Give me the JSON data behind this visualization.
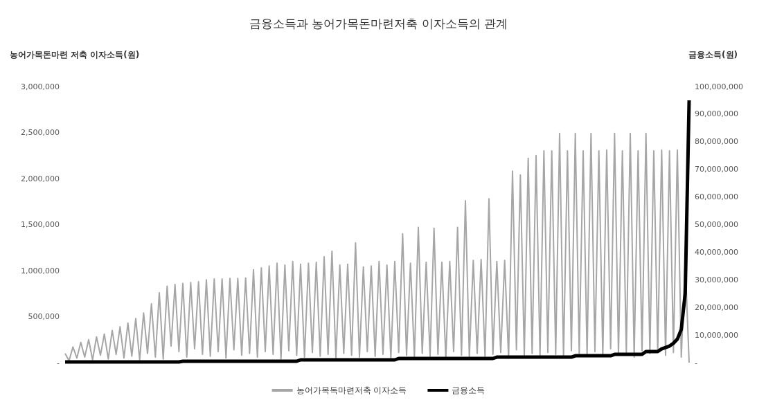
{
  "chart_data": {
    "type": "line",
    "title": "금융소득과 농어가목돈마련저축 이자소득의 관계",
    "ylabel": "농어가목돈마련 저축 이자소득(원)",
    "y2label": "금융소득(원)",
    "categories": [
      null,
      null,
      null,
      null,
      null,
      null,
      null,
      null,
      null,
      null,
      null,
      null,
      null,
      null,
      null,
      null,
      null,
      null,
      null,
      null,
      null,
      null,
      null,
      null,
      null,
      null,
      null,
      null,
      null,
      null,
      null,
      null,
      null,
      null,
      null,
      null,
      null,
      null,
      null,
      null,
      null,
      null,
      null,
      null,
      null,
      null,
      null,
      null,
      null,
      null,
      null,
      null,
      null,
      null,
      null,
      null,
      null,
      null,
      null,
      null,
      null,
      null,
      null,
      null,
      null,
      null,
      null,
      null,
      null,
      null,
      null,
      null,
      null,
      null,
      null,
      null,
      null,
      null,
      null,
      null,
      null,
      null,
      null,
      null,
      null,
      null,
      null,
      null,
      null,
      null,
      null,
      null,
      null,
      null,
      null,
      null,
      null,
      null,
      null,
      null,
      null,
      null,
      null,
      null,
      null,
      null,
      null,
      null,
      null,
      null,
      null,
      null,
      null,
      null,
      null,
      null,
      null,
      null,
      null,
      null,
      null,
      null,
      null,
      null,
      null,
      null,
      null,
      null,
      null,
      null,
      null,
      null,
      null,
      null,
      null,
      null,
      null,
      null,
      null,
      null,
      null,
      null,
      null,
      null,
      null,
      null,
      null,
      null,
      null,
      null,
      null,
      null,
      null,
      null,
      null,
      null,
      null,
      null,
      null,
      null
    ],
    "series": [
      {
        "name": "농어가목독마련저축 이자소득",
        "color": "#a6a6a6",
        "values": [
          100000,
          20000,
          170000,
          50000,
          220000,
          60000,
          250000,
          30000,
          280000,
          80000,
          310000,
          40000,
          350000,
          90000,
          390000,
          50000,
          430000,
          70000,
          480000,
          30000,
          540000,
          100000,
          640000,
          60000,
          760000,
          40000,
          830000,
          180000,
          850000,
          120000,
          860000,
          60000,
          870000,
          150000,
          880000,
          90000,
          900000,
          70000,
          910000,
          120000,
          910000,
          50000,
          915000,
          140000,
          915000,
          80000,
          920000,
          100000,
          1010000,
          60000,
          1030000,
          120000,
          1050000,
          90000,
          1080000,
          40000,
          1060000,
          130000,
          1100000,
          80000,
          1070000,
          60000,
          1080000,
          110000,
          1090000,
          70000,
          1150000,
          90000,
          1210000,
          50000,
          1060000,
          100000,
          1070000,
          80000,
          1300000,
          60000,
          1040000,
          120000,
          1050000,
          70000,
          1100000,
          90000,
          1060000,
          50000,
          1100000,
          110000,
          1400000,
          80000,
          1080000,
          60000,
          1470000,
          100000,
          1090000,
          70000,
          1460000,
          90000,
          1090000,
          50000,
          1100000,
          120000,
          1470000,
          80000,
          1760000,
          60000,
          1110000,
          100000,
          1120000,
          70000,
          1780000,
          90000,
          1100000,
          110000,
          1110000,
          50000,
          2080000,
          140000,
          2040000,
          80000,
          2220000,
          100000,
          2250000,
          70000,
          2300000,
          110000,
          2300000,
          90000,
          2490000,
          60000,
          2300000,
          130000,
          2490000,
          100000,
          2300000,
          80000,
          2490000,
          120000,
          2300000,
          70000,
          2310000,
          150000,
          2490000,
          90000,
          2300000,
          110000,
          2490000,
          60000,
          2300000,
          130000,
          2490000,
          100000,
          2300000,
          120000,
          2310000,
          80000,
          2300000,
          110000,
          2310000,
          60000,
          1100000,
          0
        ]
      },
      {
        "name": "금융소득",
        "color": "#000000",
        "axis": "y2",
        "values": [
          250000,
          250000,
          250000,
          250000,
          250000,
          250000,
          250000,
          250000,
          250000,
          250000,
          250000,
          250000,
          250000,
          250000,
          250000,
          250000,
          250000,
          250000,
          250000,
          250000,
          250000,
          250000,
          250000,
          250000,
          250000,
          250000,
          250000,
          250000,
          250000,
          250000,
          500000,
          500000,
          500000,
          500000,
          500000,
          500000,
          500000,
          500000,
          500000,
          500000,
          500000,
          500000,
          500000,
          500000,
          500000,
          500000,
          500000,
          500000,
          500000,
          500000,
          500000,
          500000,
          500000,
          500000,
          500000,
          500000,
          500000,
          500000,
          500000,
          500000,
          1000000,
          1000000,
          1000000,
          1000000,
          1000000,
          1000000,
          1000000,
          1000000,
          1000000,
          1000000,
          1000000,
          1000000,
          1000000,
          1000000,
          1000000,
          1000000,
          1000000,
          1000000,
          1000000,
          1000000,
          1000000,
          1000000,
          1000000,
          1000000,
          1000000,
          1500000,
          1500000,
          1500000,
          1500000,
          1500000,
          1500000,
          1500000,
          1500000,
          1500000,
          1500000,
          1500000,
          1500000,
          1500000,
          1500000,
          1500000,
          1500000,
          1500000,
          1500000,
          1500000,
          1500000,
          1500000,
          1500000,
          1500000,
          1500000,
          1500000,
          2000000,
          2000000,
          2000000,
          2000000,
          2000000,
          2000000,
          2000000,
          2000000,
          2000000,
          2000000,
          2000000,
          2000000,
          2000000,
          2000000,
          2000000,
          2000000,
          2000000,
          2000000,
          2000000,
          2000000,
          2500000,
          2500000,
          2500000,
          2500000,
          2500000,
          2500000,
          2500000,
          2500000,
          2500000,
          2500000,
          3000000,
          3000000,
          3000000,
          3000000,
          3000000,
          3000000,
          3000000,
          3000000,
          4000000,
          4000000,
          4000000,
          4000000,
          5000000,
          5500000,
          6000000,
          7000000,
          8500000,
          12000000,
          25000000,
          95000000
        ]
      }
    ],
    "ylim": [
      0,
      3000000
    ],
    "yticks": [
      {
        "value": 0,
        "label": "-"
      },
      {
        "value": 500000,
        "label": "500,000"
      },
      {
        "value": 1000000,
        "label": "1,000,000"
      },
      {
        "value": 1500000,
        "label": "1,500,000"
      },
      {
        "value": 2000000,
        "label": "2,000,000"
      },
      {
        "value": 2500000,
        "label": "2,500,000"
      },
      {
        "value": 3000000,
        "label": "3,000,000"
      }
    ],
    "y2lim": [
      0,
      100000000
    ],
    "y2ticks": [
      {
        "value": 0,
        "label": "-"
      },
      {
        "value": 10000000,
        "label": "10,000,000"
      },
      {
        "value": 20000000,
        "label": "20,000,000"
      },
      {
        "value": 30000000,
        "label": "30,000,000"
      },
      {
        "value": 40000000,
        "label": "40,000,000"
      },
      {
        "value": 50000000,
        "label": "50,000,000"
      },
      {
        "value": 60000000,
        "label": "60,000,000"
      },
      {
        "value": 70000000,
        "label": "70,000,000"
      },
      {
        "value": 80000000,
        "label": "80,000,000"
      },
      {
        "value": 90000000,
        "label": "90,000,000"
      },
      {
        "value": 100000000,
        "label": "100,000,000"
      }
    ],
    "grid": false,
    "legend": "bottom"
  }
}
